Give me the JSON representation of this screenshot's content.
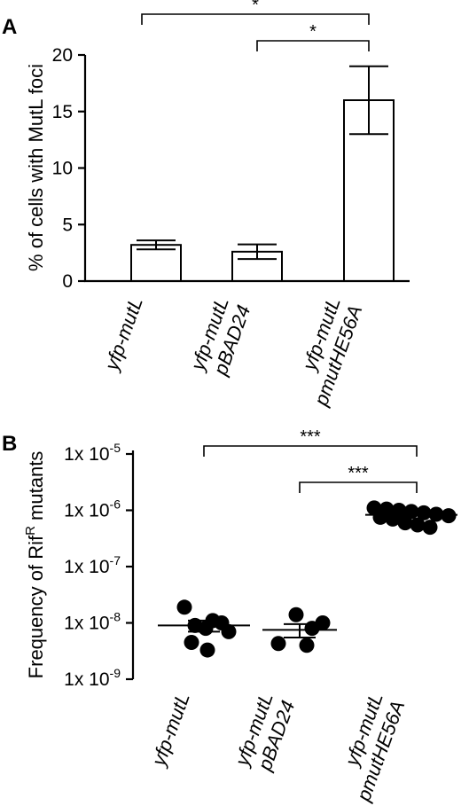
{
  "chart_data": [
    {
      "panel": "A",
      "type": "bar",
      "ylabel": "% of cells with MutL foci",
      "ylim": [
        0,
        20
      ],
      "yticks": [
        0,
        5,
        10,
        15,
        20
      ],
      "categories": [
        [
          "yfp-mutL"
        ],
        [
          "yfp-mutL",
          "pBAD24"
        ],
        [
          "yfp-mutL",
          "pmutHE56A"
        ]
      ],
      "values": [
        3.2,
        2.6,
        16.0
      ],
      "errors": [
        0.4,
        0.65,
        3.0
      ],
      "significance": [
        {
          "from": 0,
          "to": 2,
          "label": "*"
        },
        {
          "from": 1,
          "to": 2,
          "label": "*"
        }
      ],
      "grid": false
    },
    {
      "panel": "B",
      "type": "scatter",
      "ylabel_main": "Frequency of Rif",
      "ylabel_sup": "R",
      "ylabel_tail": " mutants",
      "yscale": "log",
      "ylim": [
        1e-09,
        1e-05
      ],
      "yticks": [
        {
          "base": "1x 10",
          "exp": "-5"
        },
        {
          "base": "1x 10",
          "exp": "-6"
        },
        {
          "base": "1x 10",
          "exp": "-7"
        },
        {
          "base": "1x 10",
          "exp": "-8"
        },
        {
          "base": "1x 10",
          "exp": "-9"
        }
      ],
      "categories": [
        [
          "yfp-mutL"
        ],
        [
          "yfp-mutL",
          "pBAD24"
        ],
        [
          "yfp-mutL",
          "pmutHE56A"
        ]
      ],
      "points": [
        [
          1.9e-08,
          1.1e-08,
          1e-08,
          9e-09,
          8e-09,
          7e-09,
          4.5e-09,
          3.3e-09
        ],
        [
          1.4e-08,
          1e-08,
          8e-09,
          4.3e-09,
          4e-09
        ],
        [
          1.1e-06,
          1.05e-06,
          1e-06,
          9.5e-07,
          9e-07,
          8.5e-07,
          8e-07,
          7.5e-07,
          7e-07,
          6e-07,
          5.5e-07,
          5e-07
        ]
      ],
      "means": [
        9e-09,
        7.5e-09,
        8.3e-07
      ],
      "sems": [
        2e-09,
        2e-09,
        0
      ],
      "significance": [
        {
          "from": 0,
          "to": 2,
          "label": "***"
        },
        {
          "from": 1,
          "to": 2,
          "label": "***"
        }
      ],
      "grid": false
    }
  ]
}
